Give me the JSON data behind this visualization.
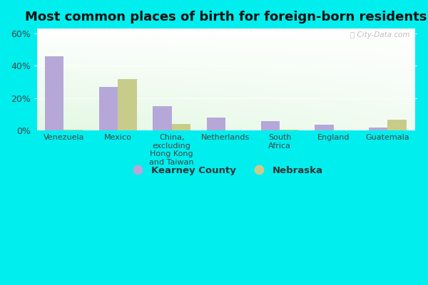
{
  "title": "Most common places of birth for foreign-born residents",
  "categories": [
    "Venezuela",
    "Mexico",
    "China,\nexcluding\nHong Kong\nand Taiwan",
    "Netherlands",
    "South\nAfrica",
    "England",
    "Guatemala"
  ],
  "kearney_values": [
    46,
    27,
    15,
    8,
    6,
    3.5,
    2
  ],
  "nebraska_values": [
    0.5,
    32,
    4,
    0,
    0.5,
    0,
    7
  ],
  "kearney_color": "#b5a8d8",
  "nebraska_color": "#c8cc8a",
  "bar_width": 0.35,
  "ylim": [
    0,
    63
  ],
  "yticks": [
    0,
    20,
    40,
    60
  ],
  "ytick_labels": [
    "0%",
    "20%",
    "40%",
    "60%"
  ],
  "background_color": "#00eeee",
  "title_fontsize": 13,
  "tick_fontsize": 8,
  "legend_labels": [
    "Kearney County",
    "Nebraska"
  ],
  "watermark": "ⓘ City-Data.com"
}
